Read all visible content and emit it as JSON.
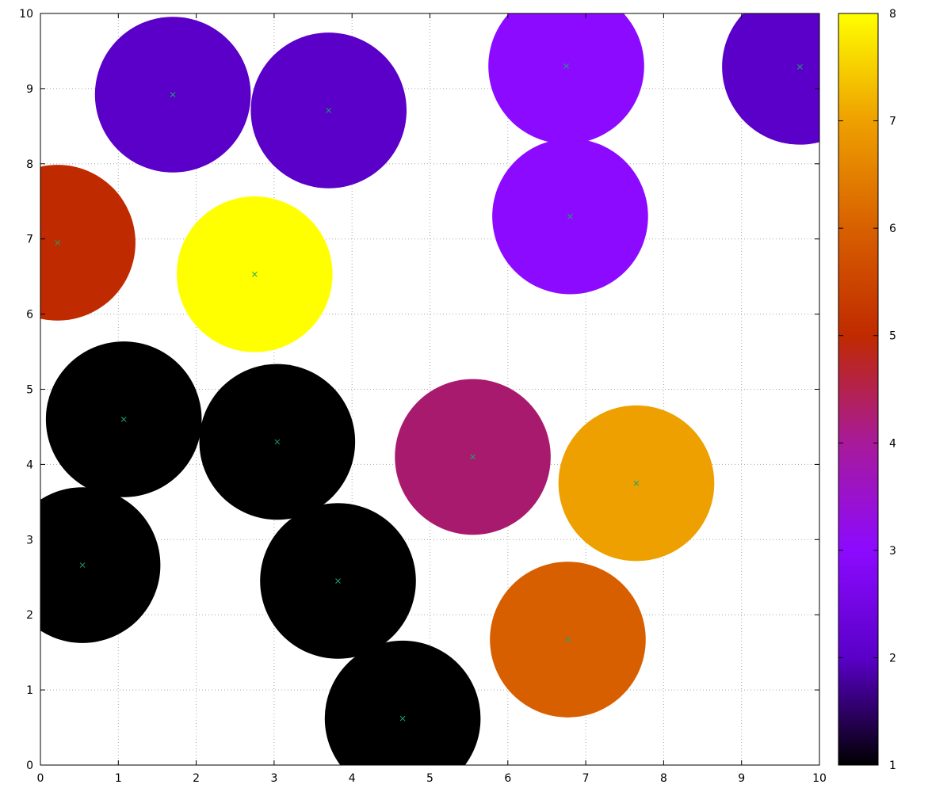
{
  "chart_data": {
    "type": "scatter",
    "title": "",
    "xlabel": "",
    "ylabel": "",
    "xlim": [
      0,
      10
    ],
    "ylim": [
      0,
      10
    ],
    "xticks": [
      0,
      1,
      2,
      3,
      4,
      5,
      6,
      7,
      8,
      9,
      10
    ],
    "yticks": [
      0,
      1,
      2,
      3,
      4,
      5,
      6,
      7,
      8,
      9,
      10
    ],
    "grid": true,
    "colorbar": {
      "range": [
        1,
        8
      ],
      "ticks": [
        1,
        2,
        3,
        4,
        5,
        6,
        7,
        8
      ],
      "palette": "black-blue-magenta-orange-yellow"
    },
    "circle_radius": 1.0,
    "points": [
      {
        "x": 1.7,
        "y": 8.92,
        "value": 2
      },
      {
        "x": 3.7,
        "y": 8.71,
        "value": 2
      },
      {
        "x": 6.75,
        "y": 9.3,
        "value": 3
      },
      {
        "x": 9.75,
        "y": 9.29,
        "value": 2
      },
      {
        "x": 6.8,
        "y": 7.3,
        "value": 3
      },
      {
        "x": 0.22,
        "y": 6.95,
        "value": 5
      },
      {
        "x": 2.75,
        "y": 6.53,
        "value": 8
      },
      {
        "x": 1.07,
        "y": 4.6,
        "value": 1
      },
      {
        "x": 3.04,
        "y": 4.3,
        "value": 1
      },
      {
        "x": 5.55,
        "y": 4.1,
        "value": 4
      },
      {
        "x": 7.65,
        "y": 3.75,
        "value": 7
      },
      {
        "x": 0.54,
        "y": 2.66,
        "value": 1
      },
      {
        "x": 3.82,
        "y": 2.45,
        "value": 1
      },
      {
        "x": 4.65,
        "y": 0.62,
        "value": 1
      },
      {
        "x": 6.77,
        "y": 1.67,
        "value": 6
      }
    ],
    "marker_color": "#1aa36a"
  }
}
